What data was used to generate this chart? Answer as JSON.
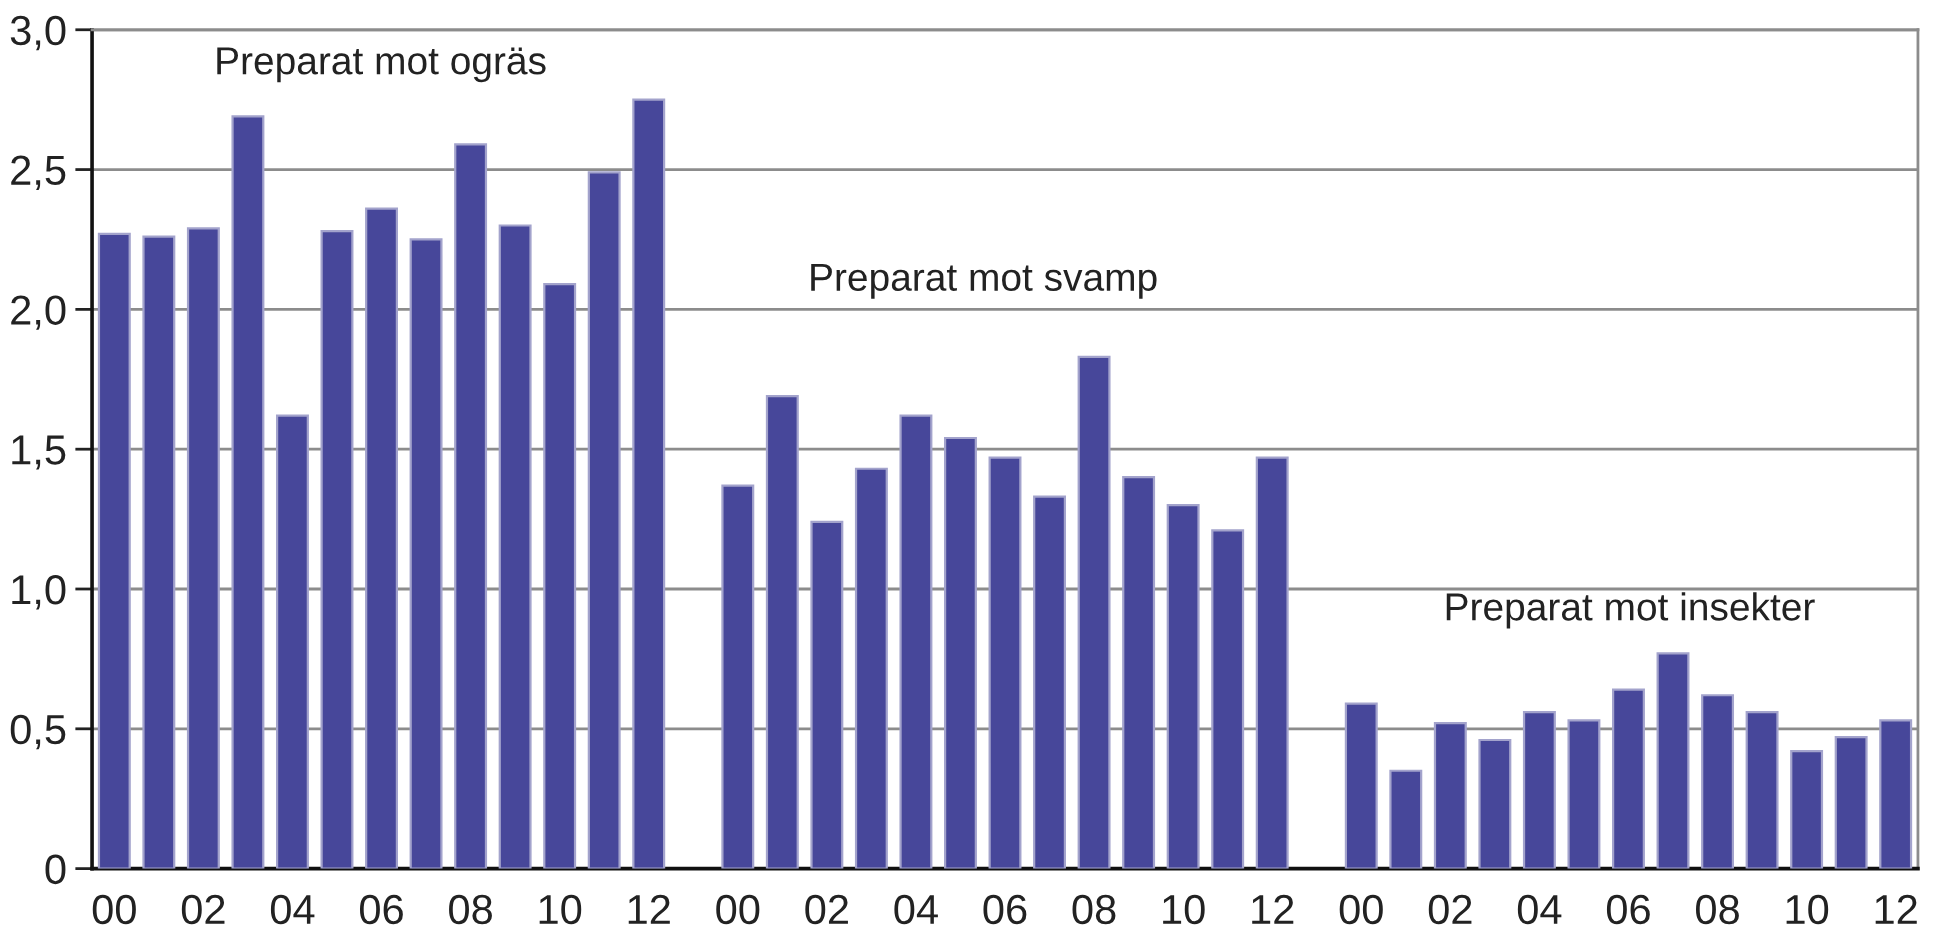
{
  "chart_data": {
    "type": "bar",
    "categories": [
      "00",
      null,
      "02",
      null,
      "04",
      null,
      "06",
      null,
      "08",
      null,
      "10",
      null,
      "12",
      null,
      "00",
      null,
      "02",
      null,
      "04",
      null,
      "06",
      null,
      "08",
      null,
      "10",
      null,
      "12",
      null,
      "00",
      null,
      "02",
      null,
      "04",
      null,
      "06",
      null,
      "08",
      null,
      "10",
      null,
      "12"
    ],
    "values": [
      2.27,
      2.26,
      2.29,
      2.69,
      1.62,
      2.28,
      2.36,
      2.25,
      2.59,
      2.3,
      2.09,
      2.49,
      2.75,
      null,
      1.37,
      1.69,
      1.24,
      1.43,
      1.62,
      1.54,
      1.47,
      1.33,
      1.83,
      1.4,
      1.3,
      1.21,
      1.47,
      null,
      0.59,
      0.35,
      0.52,
      0.46,
      0.56,
      0.53,
      0.64,
      0.77,
      0.62,
      0.56,
      0.42,
      0.47,
      0.53
    ],
    "color": "#47479a",
    "ylim": [
      0,
      3.0
    ],
    "yticks": [
      0,
      {
        "value": 0.5,
        "label": "0,5"
      },
      {
        "value": 1.0,
        "label": "1,0"
      },
      {
        "value": 1.5,
        "label": "1,5"
      },
      {
        "value": 2.0,
        "label": "2,0"
      },
      {
        "value": 2.5,
        "label": "2,5"
      },
      {
        "value": 3.0,
        "label": "3,0"
      }
    ],
    "grid": "y",
    "annotations": [
      "Preparat mot ogräs",
      "Preparat mot svamp",
      "Preparat mot insekter"
    ]
  }
}
